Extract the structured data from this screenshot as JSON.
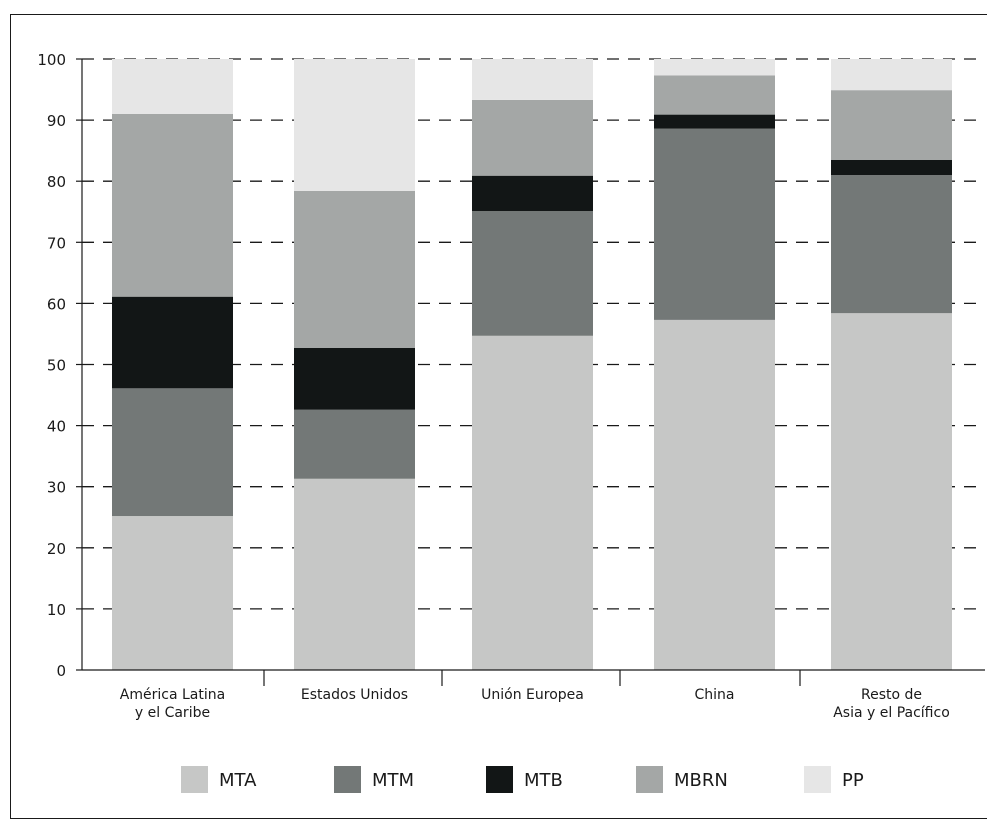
{
  "chart_data": {
    "type": "bar",
    "stacked": true,
    "categories": [
      [
        "América Latina",
        "y el Caribe"
      ],
      [
        "Estados Unidos"
      ],
      [
        "Unión Europea"
      ],
      [
        "China"
      ],
      [
        "Resto de",
        "Asia y el Pacífico"
      ]
    ],
    "series": [
      {
        "name": "MTA",
        "color": "#c6c7c6",
        "values": [
          25.2,
          31.3,
          54.7,
          57.3,
          58.4
        ]
      },
      {
        "name": "MTM",
        "color": "#737877",
        "values": [
          20.9,
          11.3,
          20.4,
          31.3,
          22.6
        ]
      },
      {
        "name": "MTB",
        "color": "#121616",
        "values": [
          15.0,
          10.1,
          5.8,
          2.3,
          2.5
        ]
      },
      {
        "name": "MBRN",
        "color": "#a4a7a6",
        "values": [
          29.9,
          25.7,
          12.4,
          6.4,
          11.4
        ]
      },
      {
        "name": "PP",
        "color": "#e6e6e6",
        "values": [
          9.0,
          21.6,
          6.7,
          2.7,
          5.1
        ]
      }
    ],
    "ylim": [
      0,
      100
    ],
    "yticks": [
      0,
      10,
      20,
      30,
      40,
      50,
      60,
      70,
      80,
      90,
      100
    ],
    "grid": "horizontal-dashed",
    "legend": "bottom"
  }
}
